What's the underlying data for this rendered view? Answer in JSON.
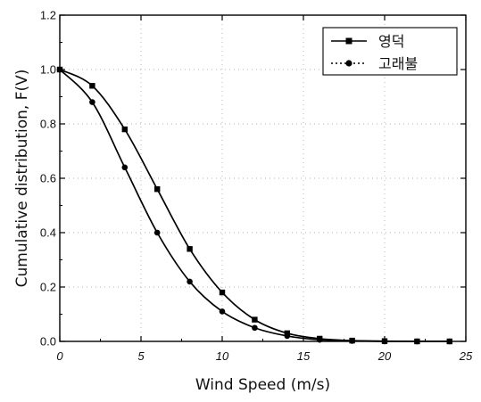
{
  "chart_data": {
    "type": "line",
    "title": "",
    "xlabel": "Wind Speed (m/s)",
    "ylabel": "Cumulative distribution, F(V)",
    "xlim": [
      0,
      25
    ],
    "ylim": [
      0,
      1.2
    ],
    "x_ticks": [
      "0",
      "5",
      "10",
      "15",
      "20",
      "25"
    ],
    "y_ticks": [
      "0.0",
      "0.2",
      "0.4",
      "0.6",
      "0.8",
      "1.0",
      "1.2"
    ],
    "grid": true,
    "legend_position": "top-right",
    "series": [
      {
        "name": "영덕",
        "line_style": "solid",
        "marker": "square",
        "x": [
          0,
          2,
          4,
          6,
          8,
          10,
          12,
          14,
          16,
          18,
          20,
          22,
          24
        ],
        "y": [
          1.0,
          0.94,
          0.78,
          0.56,
          0.34,
          0.18,
          0.08,
          0.03,
          0.01,
          0.003,
          0.001,
          0.0,
          0.0
        ]
      },
      {
        "name": "고래불",
        "line_style": "dotted",
        "marker": "circle",
        "x": [
          0,
          2,
          4,
          6,
          8,
          10,
          12,
          14,
          16,
          18,
          20,
          22,
          24
        ],
        "y": [
          1.0,
          0.88,
          0.64,
          0.4,
          0.22,
          0.11,
          0.05,
          0.02,
          0.006,
          0.002,
          0.0,
          0.0,
          0.0
        ]
      }
    ]
  }
}
